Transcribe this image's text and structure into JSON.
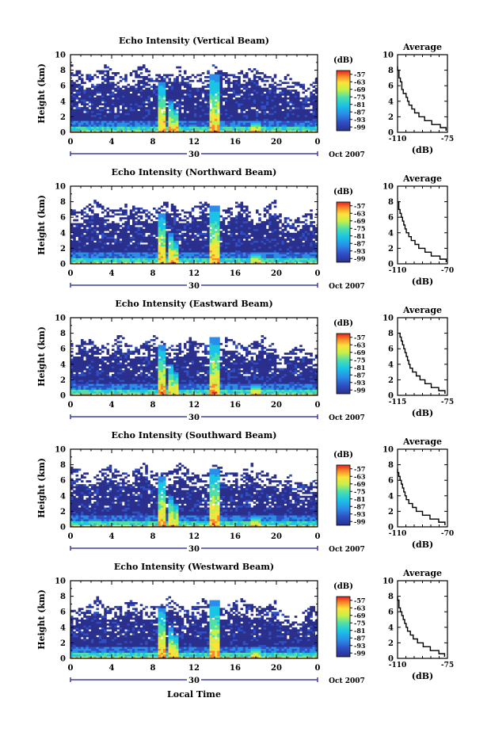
{
  "figure": {
    "xlabel": "Local Time",
    "date_label": "Oct 2007",
    "day_label": "30",
    "ylabel": "Height (km)",
    "unit_label": "(dB)",
    "profile_title": "Average",
    "profile_xlabel": "(dB)"
  },
  "chart_data": [
    {
      "type": "heatmap",
      "title": "Echo Intensity (Vertical Beam)",
      "x_ticks": [
        "0",
        "4",
        "8",
        "12",
        "16",
        "20",
        "0"
      ],
      "xlim": [
        0,
        24
      ],
      "y_ticks": [
        "0",
        "2",
        "4",
        "6",
        "8",
        "10"
      ],
      "ylim": [
        0,
        10
      ],
      "colorbar_ticks": [
        "-57",
        "-63",
        "-69",
        "-75",
        "-81",
        "-87",
        "-93",
        "-99"
      ],
      "colorbar_range": [
        -102,
        -54
      ],
      "profile": {
        "xlim": [
          -110,
          -75
        ],
        "x_ticks": [
          "-110",
          "-75"
        ],
        "y_ticks": [
          "0",
          "2",
          "4",
          "6",
          "8",
          "10"
        ],
        "height": [
          0.2,
          0.6,
          1,
          1.5,
          2,
          2.5,
          3,
          3.5,
          4,
          4.5,
          5,
          5.5,
          6,
          6.5,
          7,
          7.5,
          8,
          8.5
        ],
        "db": [
          -76,
          -80,
          -86,
          -91,
          -95,
          -98,
          -100,
          -102,
          -103,
          -104,
          -106,
          -107,
          -107,
          -108,
          -109,
          -109,
          -110,
          -110
        ]
      }
    },
    {
      "type": "heatmap",
      "title": "Echo Intensity (Northward Beam)",
      "x_ticks": [
        "0",
        "4",
        "8",
        "12",
        "16",
        "20",
        "0"
      ],
      "xlim": [
        0,
        24
      ],
      "y_ticks": [
        "0",
        "2",
        "4",
        "6",
        "8",
        "10"
      ],
      "ylim": [
        0,
        10
      ],
      "colorbar_ticks": [
        "-57",
        "-63",
        "-69",
        "-75",
        "-81",
        "-87",
        "-93",
        "-99"
      ],
      "colorbar_range": [
        -102,
        -54
      ],
      "profile": {
        "xlim": [
          -110,
          -70
        ],
        "x_ticks": [
          "-110",
          "-70"
        ],
        "y_ticks": [
          "0",
          "2",
          "4",
          "6",
          "8",
          "10"
        ],
        "height": [
          0.2,
          0.6,
          1,
          1.5,
          2,
          2.5,
          3,
          3.5,
          4,
          4.5,
          5,
          5.5,
          6,
          6.5,
          7,
          7.5,
          8
        ],
        "db": [
          -71,
          -76,
          -83,
          -88,
          -93,
          -96,
          -99,
          -101,
          -103,
          -104,
          -105,
          -106,
          -107,
          -108,
          -109,
          -109,
          -110
        ]
      }
    },
    {
      "type": "heatmap",
      "title": "Echo Intensity (Eastward Beam)",
      "x_ticks": [
        "0",
        "4",
        "8",
        "12",
        "16",
        "20",
        "0"
      ],
      "xlim": [
        0,
        24
      ],
      "y_ticks": [
        "0",
        "2",
        "4",
        "6",
        "8",
        "10"
      ],
      "ylim": [
        0,
        10
      ],
      "colorbar_ticks": [
        "-57",
        "-63",
        "-69",
        "-75",
        "-81",
        "-87",
        "-93",
        "-99"
      ],
      "colorbar_range": [
        -102,
        -54
      ],
      "profile": {
        "xlim": [
          -115,
          -75
        ],
        "x_ticks": [
          "-115",
          "-75"
        ],
        "y_ticks": [
          "0",
          "2",
          "4",
          "6",
          "8",
          "10"
        ],
        "height": [
          0.2,
          0.6,
          1,
          1.5,
          2,
          2.5,
          3,
          3.5,
          4,
          4.5,
          5,
          5.5,
          6,
          6.5,
          7,
          7.5,
          8
        ],
        "db": [
          -77,
          -82,
          -88,
          -93,
          -97,
          -100,
          -103,
          -105,
          -106,
          -107,
          -108,
          -109,
          -110,
          -111,
          -112,
          -113,
          -114
        ]
      }
    },
    {
      "type": "heatmap",
      "title": "Echo Intensity (Southward Beam)",
      "x_ticks": [
        "0",
        "4",
        "8",
        "12",
        "16",
        "20",
        "0"
      ],
      "xlim": [
        0,
        24
      ],
      "y_ticks": [
        "0",
        "2",
        "4",
        "6",
        "8",
        "10"
      ],
      "ylim": [
        0,
        10
      ],
      "colorbar_ticks": [
        "-57",
        "-63",
        "-69",
        "-75",
        "-81",
        "-87",
        "-93",
        "-99"
      ],
      "colorbar_range": [
        -102,
        -54
      ],
      "profile": {
        "xlim": [
          -110,
          -70
        ],
        "x_ticks": [
          "-110",
          "-70"
        ],
        "y_ticks": [
          "0",
          "2",
          "4",
          "6",
          "8",
          "10"
        ],
        "height": [
          0.2,
          0.6,
          1,
          1.5,
          2,
          2.5,
          3,
          3.5,
          4,
          4.5,
          5,
          5.5,
          6,
          6.5,
          7,
          7.5
        ],
        "db": [
          -72,
          -77,
          -84,
          -90,
          -95,
          -98,
          -101,
          -103,
          -104,
          -105,
          -106,
          -107,
          -108,
          -109,
          -110,
          -110
        ]
      }
    },
    {
      "type": "heatmap",
      "title": "Echo Intensity (Westward Beam)",
      "x_ticks": [
        "0",
        "4",
        "8",
        "12",
        "16",
        "20",
        "0"
      ],
      "xlim": [
        0,
        24
      ],
      "y_ticks": [
        "0",
        "2",
        "4",
        "6",
        "8",
        "10"
      ],
      "ylim": [
        0,
        10
      ],
      "colorbar_ticks": [
        "-57",
        "-63",
        "-69",
        "-75",
        "-81",
        "-87",
        "-93",
        "-99"
      ],
      "colorbar_range": [
        -102,
        -54
      ],
      "profile": {
        "xlim": [
          -110,
          -75
        ],
        "x_ticks": [
          "-110",
          "-75"
        ],
        "y_ticks": [
          "0",
          "2",
          "4",
          "6",
          "8",
          "10"
        ],
        "height": [
          0.2,
          0.6,
          1,
          1.5,
          2,
          2.5,
          3,
          3.5,
          4,
          4.5,
          5,
          5.5,
          6,
          6.5,
          7,
          7.5,
          8
        ],
        "db": [
          -77,
          -81,
          -87,
          -92,
          -96,
          -99,
          -101,
          -103,
          -104,
          -105,
          -106,
          -107,
          -108,
          -109,
          -109,
          -110,
          -110
        ]
      }
    }
  ]
}
